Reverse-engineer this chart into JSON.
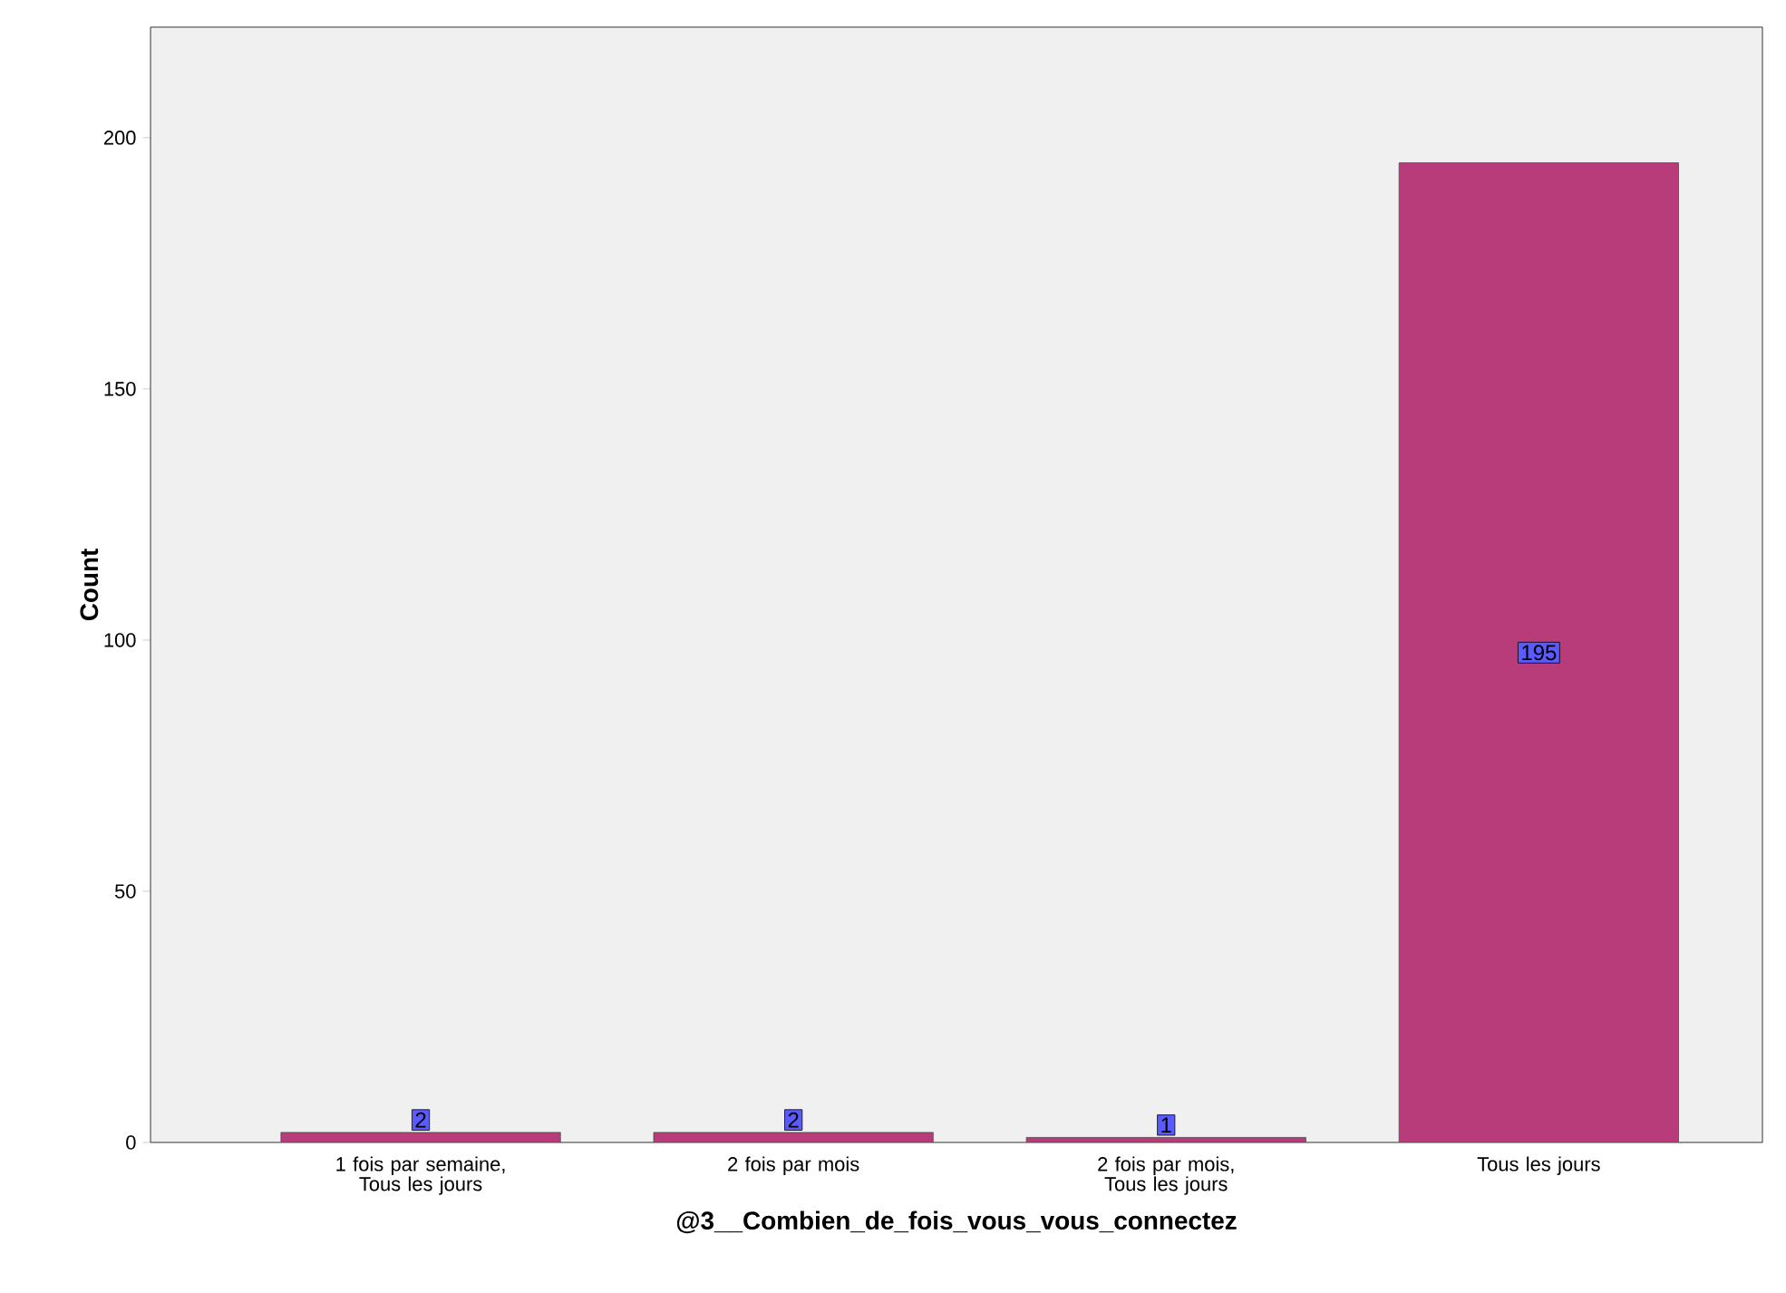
{
  "chart_data": {
    "type": "bar",
    "xlabel": "@3__Combien_de_fois_vous_vous_connectez",
    "ylabel": "Count",
    "categories": [
      "1 fois par semaine, Tous les jours",
      "2 fois par mois",
      "2 fois par mois, Tous les jours",
      "Tous les jours"
    ],
    "values": [
      2,
      2,
      1,
      195
    ],
    "value_labels": [
      "2",
      "2",
      "1",
      "195"
    ],
    "color": "#b83c7a",
    "ylim": [
      0,
      222
    ],
    "yticks": [
      0,
      50,
      100,
      150,
      200
    ],
    "grid": false
  }
}
